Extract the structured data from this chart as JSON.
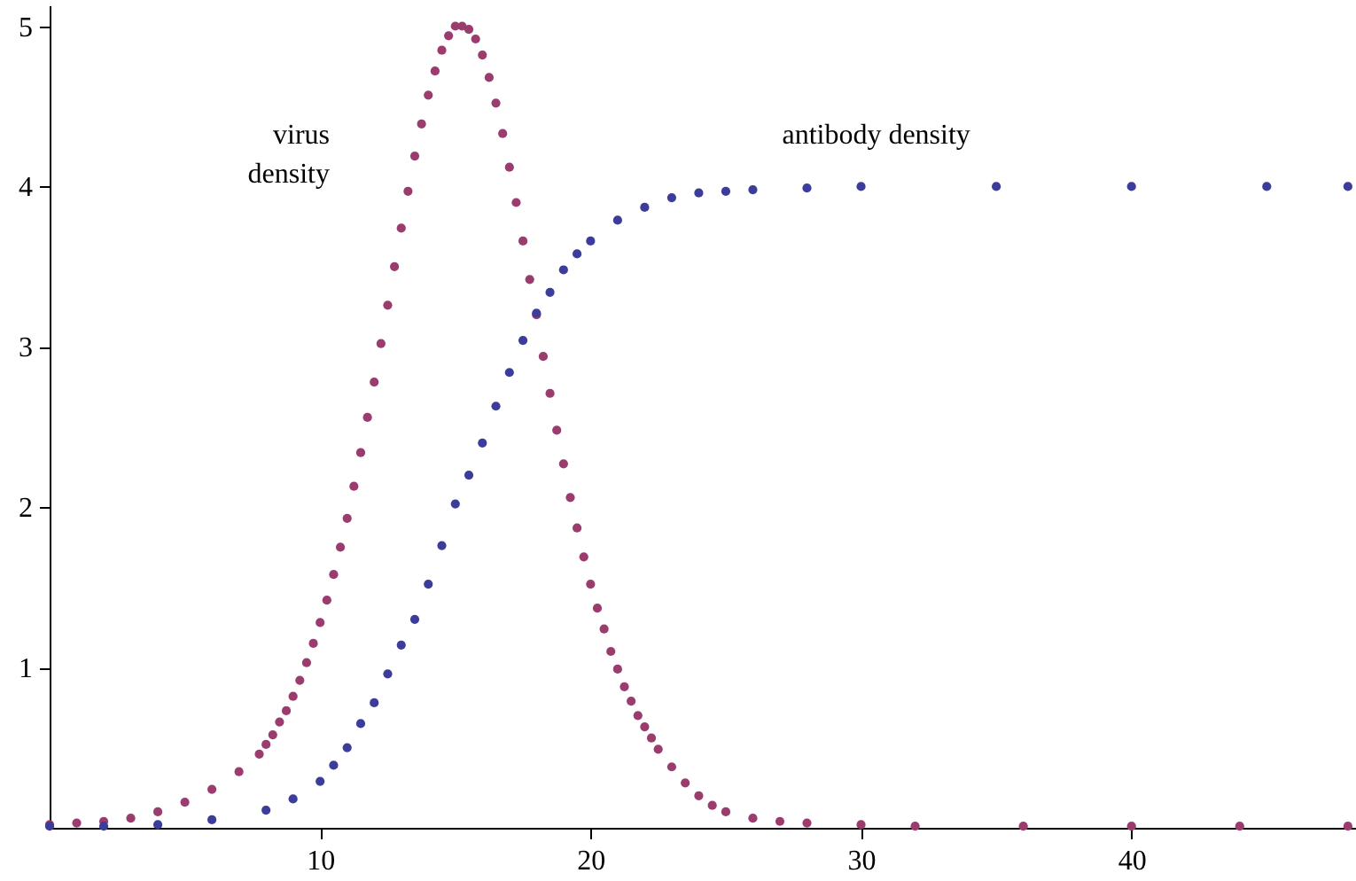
{
  "chart_data": {
    "type": "scatter",
    "marker": "circle",
    "grid": false,
    "xlim": [
      0,
      48.3
    ],
    "xticks": [
      10,
      20,
      30,
      40
    ],
    "ylim": [
      0,
      5.13
    ],
    "yticks": [
      1,
      2,
      3,
      4,
      5
    ],
    "series": [
      {
        "name": "virus\ndensity",
        "color": "#9b3c6e",
        "x": [
          0,
          1,
          2,
          3,
          4,
          5,
          6,
          7,
          7.75,
          8,
          8.25,
          8.5,
          8.75,
          9,
          9.25,
          9.5,
          9.75,
          10,
          10.25,
          10.5,
          10.75,
          11,
          11.25,
          11.5,
          11.75,
          12,
          12.25,
          12.5,
          12.75,
          13,
          13.25,
          13.5,
          13.75,
          14,
          14.25,
          14.5,
          14.75,
          15,
          15.25,
          15.5,
          15.75,
          16,
          16.25,
          16.5,
          16.75,
          17,
          17.25,
          17.5,
          17.75,
          18,
          18.25,
          18.5,
          18.75,
          19,
          19.25,
          19.5,
          19.75,
          20,
          20.25,
          20.5,
          20.75,
          21,
          21.25,
          21.5,
          21.75,
          22,
          22.25,
          22.5,
          23,
          23.5,
          24,
          24.5,
          25,
          26,
          27,
          28,
          30,
          32,
          36,
          40,
          44,
          48
        ],
        "values": [
          0.02,
          0.03,
          0.04,
          0.06,
          0.1,
          0.16,
          0.24,
          0.35,
          0.46,
          0.52,
          0.58,
          0.66,
          0.73,
          0.82,
          0.92,
          1.03,
          1.15,
          1.28,
          1.42,
          1.58,
          1.75,
          1.93,
          2.13,
          2.34,
          2.56,
          2.78,
          3.02,
          3.26,
          3.5,
          3.74,
          3.97,
          4.19,
          4.39,
          4.57,
          4.72,
          4.85,
          4.94,
          5.0,
          5.0,
          4.98,
          4.92,
          4.82,
          4.68,
          4.52,
          4.33,
          4.12,
          3.9,
          3.66,
          3.42,
          3.2,
          2.94,
          2.71,
          2.48,
          2.27,
          2.06,
          1.87,
          1.69,
          1.52,
          1.37,
          1.24,
          1.1,
          0.99,
          0.88,
          0.79,
          0.7,
          0.63,
          0.56,
          0.49,
          0.38,
          0.28,
          0.2,
          0.14,
          0.1,
          0.06,
          0.04,
          0.03,
          0.02,
          0.01,
          0.01,
          0.01,
          0.01,
          0.01
        ]
      },
      {
        "name": "antibody density",
        "color": "#3c3c9a",
        "x": [
          0,
          2,
          4,
          6,
          8,
          9,
          10,
          10.5,
          11,
          11.5,
          12,
          12.5,
          13,
          13.5,
          14,
          14.5,
          15,
          15.5,
          16,
          16.5,
          17,
          17.5,
          18,
          18.5,
          19,
          19.5,
          20,
          21,
          22,
          23,
          24,
          25,
          26,
          28,
          30,
          35,
          40,
          45,
          48
        ],
        "values": [
          0.01,
          0.01,
          0.02,
          0.05,
          0.11,
          0.18,
          0.29,
          0.39,
          0.5,
          0.65,
          0.78,
          0.96,
          1.14,
          1.3,
          1.52,
          1.76,
          2.02,
          2.2,
          2.4,
          2.63,
          2.84,
          3.04,
          3.21,
          3.34,
          3.48,
          3.58,
          3.66,
          3.79,
          3.87,
          3.93,
          3.96,
          3.97,
          3.98,
          3.99,
          4.0,
          4.0,
          4.0,
          4.0,
          4.0
        ]
      }
    ]
  }
}
